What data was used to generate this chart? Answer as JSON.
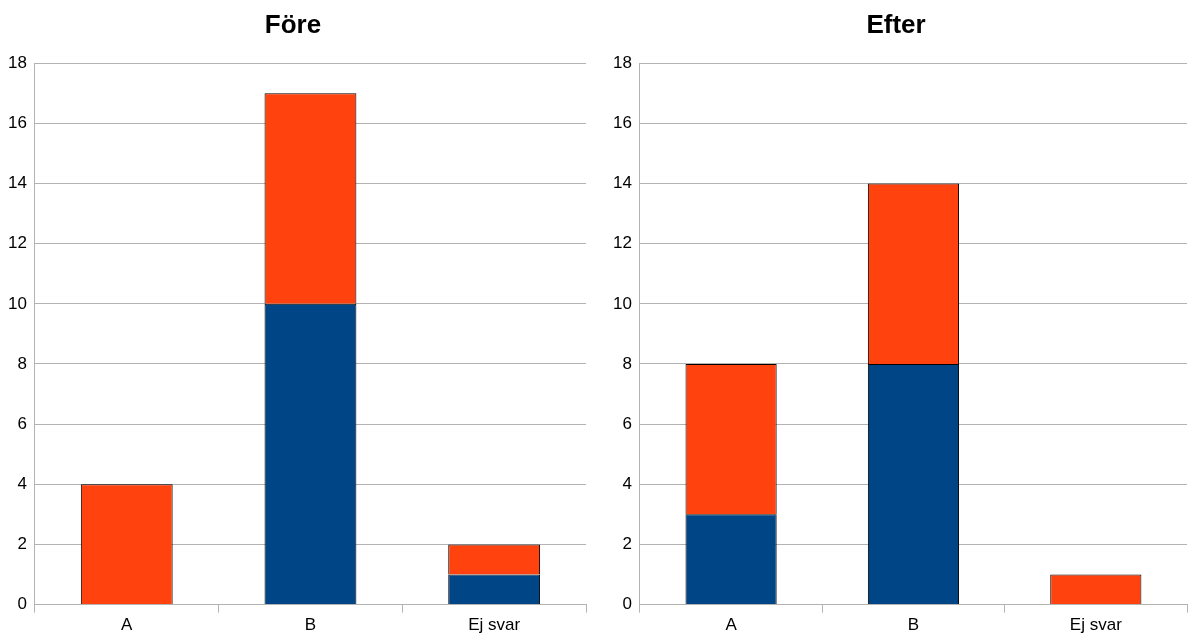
{
  "chart_data": [
    {
      "type": "bar",
      "title": "Före",
      "categories": [
        "A",
        "B",
        "Ej svar"
      ],
      "stacked": true,
      "grid": "y",
      "legend": false,
      "ylim": [
        0,
        18
      ],
      "yticks": [
        0,
        2,
        4,
        6,
        8,
        10,
        12,
        14,
        16,
        18
      ],
      "series": [
        {
          "color": "#004586",
          "values": [
            0,
            10,
            1
          ]
        },
        {
          "color": "#ff420e",
          "values": [
            4,
            7,
            1
          ]
        }
      ]
    },
    {
      "type": "bar",
      "title": "Efter",
      "categories": [
        "A",
        "B",
        "Ej svar"
      ],
      "stacked": true,
      "grid": "y",
      "legend": false,
      "ylim": [
        0,
        18
      ],
      "yticks": [
        0,
        2,
        4,
        6,
        8,
        10,
        12,
        14,
        16,
        18
      ],
      "series": [
        {
          "color": "#004586",
          "values": [
            3,
            8,
            0
          ]
        },
        {
          "color": "#ff420e",
          "values": [
            5,
            6,
            1
          ]
        }
      ]
    }
  ]
}
